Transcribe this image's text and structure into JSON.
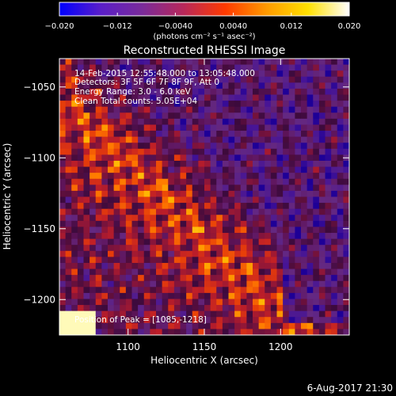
{
  "colorbar": {
    "ticks": [
      "-0.020",
      "-0.012",
      "-0.0040",
      "0.0040",
      "0.012",
      "0.020"
    ],
    "min": -0.02,
    "max": 0.02,
    "unit_label": "(photons cm⁻² s⁻¹ asec⁻²)",
    "colors": [
      "#0000ff",
      "#5a1ec8",
      "#7a2b9a",
      "#b8285a",
      "#ff3a00",
      "#ff9a00",
      "#ffe000",
      "#ffffff"
    ]
  },
  "chart_data": {
    "type": "heatmap",
    "title": "Reconstructed RHESSI Image",
    "xlabel": "Heliocentric X (arcsec)",
    "ylabel": "Heliocentric Y (arcsec)",
    "xlim": [
      1055,
      1245
    ],
    "ylim": [
      -1225,
      -1030
    ],
    "xticks": [
      1100,
      1150,
      1200
    ],
    "yticks": [
      -1050,
      -1100,
      -1150,
      -1200
    ],
    "xticklabels": [
      "1100",
      "1150",
      "1200"
    ],
    "yticklabels": [
      "−1050",
      "−1100",
      "−1150",
      "−1200"
    ],
    "peak": {
      "x": 1085,
      "y": -1218
    },
    "annotations": {
      "time": "14-Feb-2015 12:55:48.000 to 13:05:48.000",
      "detectors": "Detectors: 3F 5F 6F 7F 8F 9F, Att 0",
      "energy": "Energy Range: 3.0 - 6.0 keV",
      "clean": "Clean    Total counts: 5.05E+04",
      "peak_text": "Position of Peak = [1085,-1218]"
    }
  },
  "footer": {
    "timestamp": "6-Aug-2017 21:30"
  }
}
